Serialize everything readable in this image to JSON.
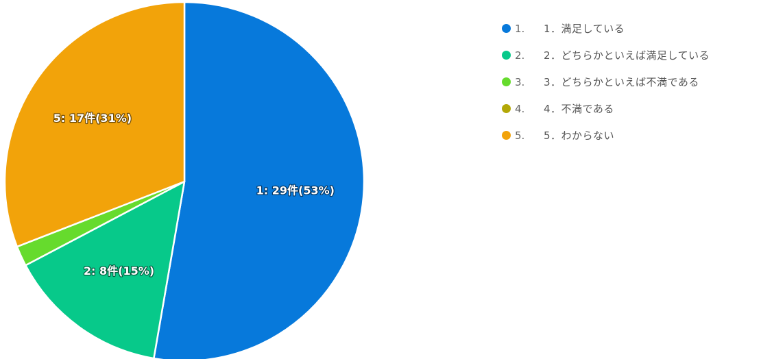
{
  "chart_data": {
    "type": "pie",
    "slices": [
      {
        "id": "1",
        "legend_number": "1.",
        "label": "1．満足している",
        "count": 29,
        "percent": 53,
        "data_label": "1: 29件(53%)",
        "color": "#0779DB"
      },
      {
        "id": "2",
        "legend_number": "2.",
        "label": "2．どちらかといえば満足している",
        "count": 8,
        "percent": 15,
        "data_label": "2: 8件(15%)",
        "color": "#07C98A"
      },
      {
        "id": "3",
        "legend_number": "3.",
        "label": "3．どちらかといえば不満である",
        "count": 1,
        "percent": 2,
        "data_label": "",
        "color": "#66DB2D"
      },
      {
        "id": "4",
        "legend_number": "4.",
        "label": "4．不満である",
        "count": 0,
        "percent": 0,
        "data_label": "",
        "color": "#B3A807"
      },
      {
        "id": "5",
        "legend_number": "5.",
        "label": "5．わからない",
        "count": 17,
        "percent": 31,
        "data_label": "5: 17件(31%)",
        "color": "#F2A30A"
      }
    ],
    "legend_placement": "top-right",
    "start_angle": "12 o'clock",
    "direction": "clockwise"
  }
}
